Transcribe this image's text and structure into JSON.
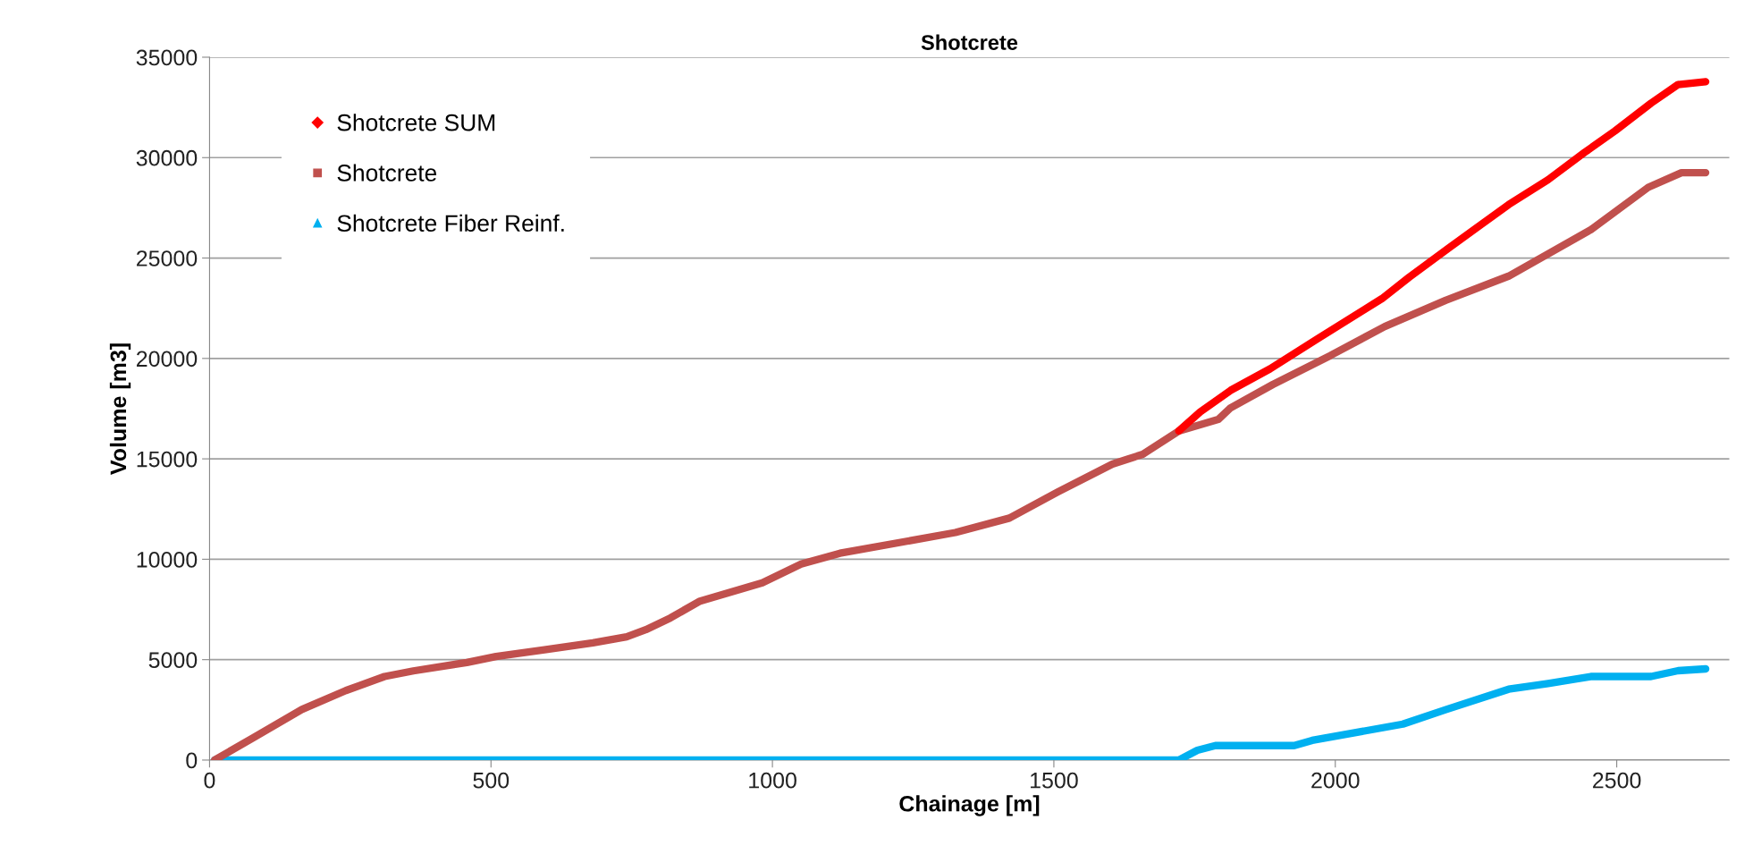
{
  "chart_data": {
    "type": "line",
    "title": "Shotcrete",
    "xlabel": "Chainage [m]",
    "ylabel": "Volume [m3]",
    "xlim": [
      0,
      2700
    ],
    "xticks": [
      0,
      500,
      1000,
      1500,
      2000,
      2500
    ],
    "ylim": [
      0,
      35000
    ],
    "yticks": [
      0,
      5000,
      10000,
      15000,
      20000,
      25000,
      30000,
      35000
    ],
    "grid": "y",
    "legend": "top left",
    "series": [
      {
        "name": "Shotcrete SUM",
        "color": "#ff0000",
        "marker": "diamond",
        "x": [
          1722,
          1760,
          1814,
          1884,
          1970,
          2083,
          2131,
          2201,
          2308,
          2378,
          2443,
          2497,
          2561,
          2609,
          2658
        ],
        "values": [
          16390,
          17340,
          18410,
          19480,
          21010,
          22980,
          24040,
          25490,
          27660,
          28900,
          30260,
          31330,
          32710,
          33640,
          33780
        ]
      },
      {
        "name": "Shotcrete",
        "color": "#c0504d",
        "marker": "square",
        "x": [
          9,
          78,
          164,
          242,
          311,
          362,
          457,
          509,
          595,
          681,
          741,
          775,
          819,
          870,
          982,
          1051,
          1120,
          1325,
          1421,
          1507,
          1604,
          1658,
          1722,
          1792,
          1814,
          1889,
          1991,
          2088,
          2196,
          2308,
          2454,
          2556,
          2615,
          2658
        ],
        "values": [
          0,
          1120,
          2520,
          3460,
          4160,
          4440,
          4860,
          5160,
          5490,
          5840,
          6140,
          6490,
          7080,
          7900,
          8830,
          9760,
          10300,
          11330,
          12050,
          13350,
          14740,
          15230,
          16390,
          16960,
          17540,
          18700,
          20140,
          21590,
          22890,
          24100,
          26410,
          28520,
          29250,
          29250
        ]
      },
      {
        "name": "Shotcrete Fiber Reinf.",
        "color": "#00b0f0",
        "marker": "triangle",
        "x": [
          9,
          1056,
          1722,
          1755,
          1787,
          1927,
          1959,
          2120,
          2196,
          2308,
          2378,
          2454,
          2561,
          2609,
          2658
        ],
        "values": [
          0,
          0,
          0,
          490,
          720,
          720,
          980,
          1790,
          2510,
          3530,
          3810,
          4160,
          4160,
          4450,
          4540
        ]
      }
    ]
  }
}
